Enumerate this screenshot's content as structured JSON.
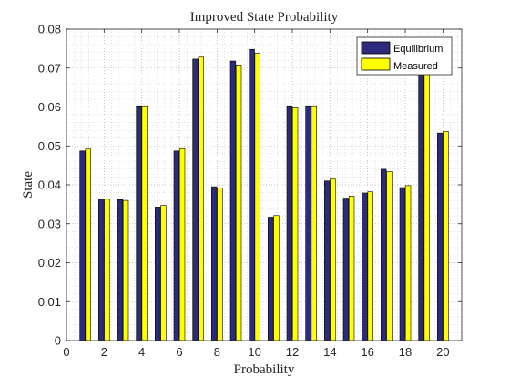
{
  "chart_data": {
    "type": "bar",
    "title": "Improved State Probability",
    "xlabel": "Probability",
    "ylabel": "State",
    "xlim": [
      0,
      21
    ],
    "ylim": [
      0,
      0.08
    ],
    "xticks": [
      0,
      2,
      4,
      6,
      8,
      10,
      12,
      14,
      16,
      18,
      20
    ],
    "yticks": [
      0,
      0.01,
      0.02,
      0.03,
      0.04,
      0.05,
      0.06,
      0.07,
      0.08
    ],
    "ytick_labels": [
      "0",
      "0.01",
      "0.02",
      "0.03",
      "0.04",
      "0.05",
      "0.06",
      "0.07",
      "0.08"
    ],
    "grid": "on (major and minor, dotted)",
    "legend_position": "top-right",
    "categories": [
      1,
      2,
      3,
      4,
      5,
      6,
      7,
      8,
      9,
      10,
      11,
      12,
      13,
      14,
      15,
      16,
      17,
      18,
      19,
      20
    ],
    "series": [
      {
        "name": "Equilibrium",
        "color": "#2b2b7a",
        "values": [
          0.0487,
          0.0363,
          0.0362,
          0.0603,
          0.0343,
          0.0487,
          0.0723,
          0.0395,
          0.0718,
          0.0748,
          0.0317,
          0.0603,
          0.0603,
          0.041,
          0.0366,
          0.0379,
          0.044,
          0.0393,
          0.0753,
          0.0533
        ]
      },
      {
        "name": "Measured",
        "color": "#ffff00",
        "values": [
          0.0492,
          0.0363,
          0.036,
          0.0603,
          0.0347,
          0.0493,
          0.0728,
          0.0392,
          0.0708,
          0.0738,
          0.0321,
          0.0598,
          0.0603,
          0.0415,
          0.0371,
          0.0382,
          0.0434,
          0.0398,
          0.0743,
          0.0537
        ]
      }
    ]
  }
}
